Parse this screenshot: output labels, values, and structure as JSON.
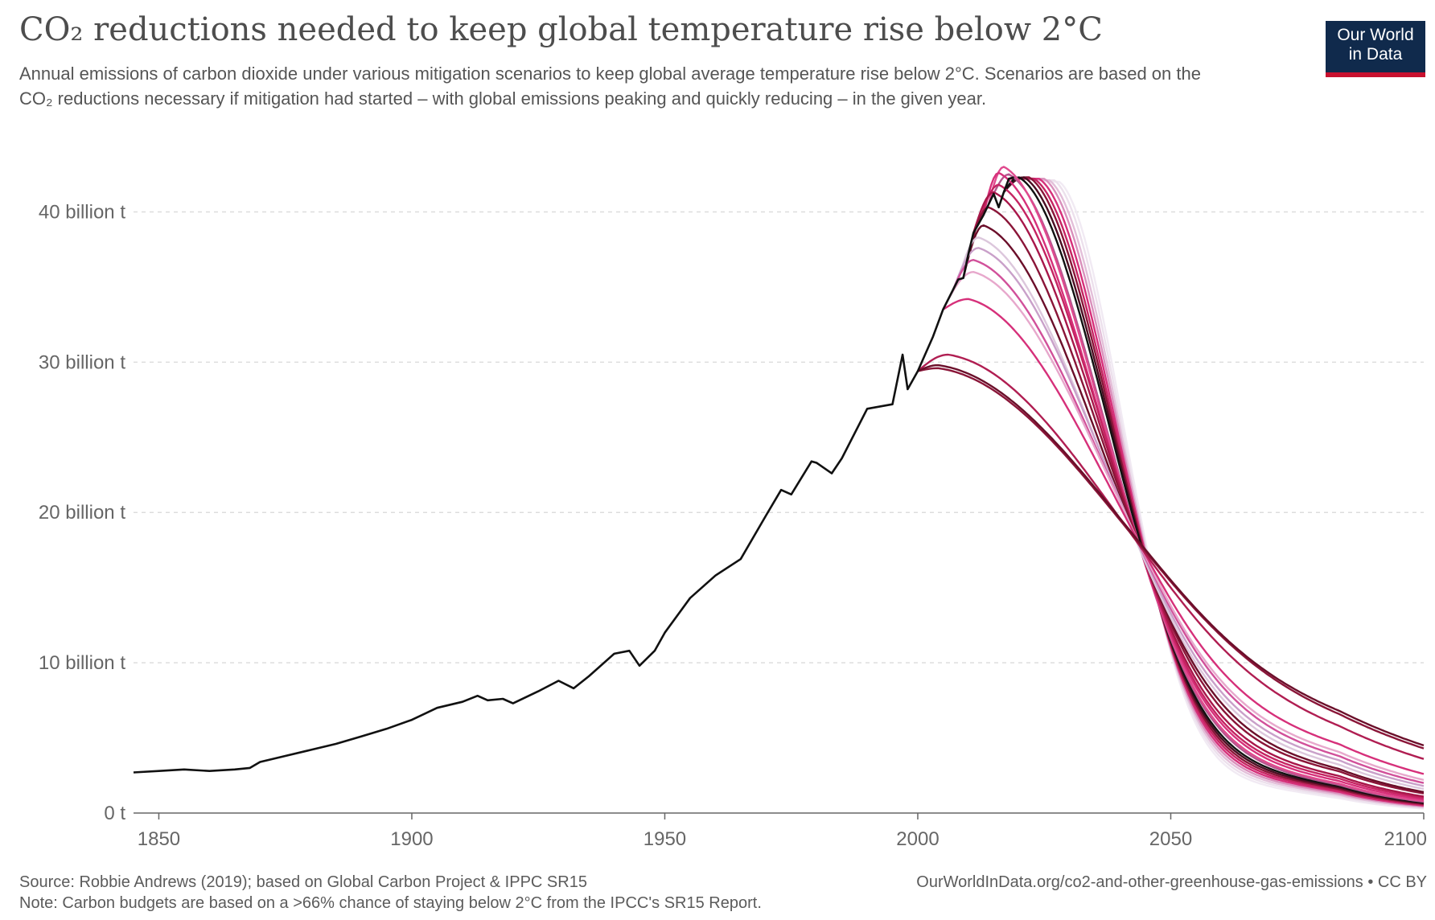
{
  "header": {
    "title": "CO₂ reductions needed to keep global temperature rise below 2°C",
    "subtitle": "Annual emissions of carbon dioxide under various mitigation scenarios to keep global average temperature rise below 2°C. Scenarios are based on the CO₂ reductions necessary if mitigation had started – with global emissions peaking and quickly reducing – in the given year.",
    "logo_line1": "Our World",
    "logo_line2": "in Data"
  },
  "footer": {
    "source": "Source: Robbie Andrews (2019); based on Global Carbon Project & IPPC SR15",
    "note": "Note: Carbon budgets are based on a >66% chance of staying below 2°C from the IPCC's SR15 Report.",
    "url": "OurWorldInData.org/co2-and-other-greenhouse-gas-emissions • CC BY"
  },
  "colors": {
    "historical": "#111111",
    "scenario_dark": "#6b0f2a",
    "scenario_mid": "#d6307a",
    "scenario_light": "#e0c8e0",
    "grid": "#dddddd",
    "axis": "#666666"
  },
  "chart_data": {
    "type": "line",
    "xlim": [
      1845,
      2100
    ],
    "ylim": [
      0,
      45
    ],
    "x_ticks": [
      1850,
      1900,
      1950,
      2000,
      2050,
      2100
    ],
    "x_tick_labels": [
      "1850",
      "1900",
      "1950",
      "2000",
      "2050",
      "2100"
    ],
    "y_ticks": [
      0,
      10,
      20,
      30,
      40
    ],
    "y_tick_labels": [
      "0 t",
      "10 billion t",
      "20 billion t",
      "30 billion t",
      "40 billion t"
    ],
    "grid": "horizontal dashed",
    "historical": {
      "x": [
        1845,
        1850,
        1855,
        1860,
        1865,
        1868,
        1870,
        1875,
        1880,
        1885,
        1890,
        1895,
        1900,
        1905,
        1910,
        1913,
        1915,
        1918,
        1920,
        1925,
        1929,
        1932,
        1935,
        1940,
        1943,
        1945,
        1948,
        1950,
        1955,
        1960,
        1965,
        1970,
        1973,
        1975,
        1979,
        1980,
        1983,
        1985,
        1990,
        1995,
        1997,
        1998,
        2000,
        2003,
        2005,
        2008,
        2009,
        2010,
        2011,
        2013,
        2015,
        2016,
        2017,
        2018,
        2019
      ],
      "y": [
        2.7,
        2.8,
        2.9,
        2.8,
        2.9,
        3.0,
        3.4,
        3.8,
        4.2,
        4.6,
        5.1,
        5.6,
        6.2,
        7.0,
        7.4,
        7.8,
        7.5,
        7.6,
        7.3,
        8.1,
        8.8,
        8.3,
        9.1,
        10.6,
        10.8,
        9.8,
        10.8,
        12.0,
        14.3,
        15.8,
        16.9,
        19.8,
        21.5,
        21.2,
        23.4,
        23.3,
        22.6,
        23.6,
        26.9,
        27.2,
        30.5,
        28.2,
        29.4,
        31.7,
        33.5,
        35.5,
        35.6,
        37.2,
        38.6,
        39.8,
        41.2,
        40.3,
        41.3,
        42.2,
        42.3
      ]
    },
    "scenarios": [
      {
        "start": 2000,
        "peak_year": 2004,
        "peak": 29.8,
        "e2050": 15.5,
        "e2100": 4.5,
        "color": "#6b0f2a"
      },
      {
        "start": 2000,
        "peak_year": 2004,
        "peak": 29.6,
        "e2050": 15.4,
        "e2100": 4.3,
        "color": "#8a1538"
      },
      {
        "start": 2000,
        "peak_year": 2006,
        "peak": 30.5,
        "e2050": 15.0,
        "e2100": 3.6,
        "color": "#b01e52"
      },
      {
        "start": 2005,
        "peak_year": 2010,
        "peak": 34.2,
        "e2050": 14.2,
        "e2100": 2.6,
        "color": "#d6307a"
      },
      {
        "start": 2005,
        "peak_year": 2011,
        "peak": 36.0,
        "e2050": 13.8,
        "e2100": 2.2,
        "color": "#e7a8cc"
      },
      {
        "start": 2007,
        "peak_year": 2011,
        "peak": 36.8,
        "e2050": 13.6,
        "e2100": 2.0,
        "color": "#d1509a"
      },
      {
        "start": 2007,
        "peak_year": 2012,
        "peak": 37.6,
        "e2050": 13.3,
        "e2100": 1.8,
        "color": "#c9a0c9"
      },
      {
        "start": 2008,
        "peak_year": 2012,
        "peak": 38.3,
        "e2050": 13.0,
        "e2100": 1.6,
        "color": "#dcc7dc"
      },
      {
        "start": 2009,
        "peak_year": 2013,
        "peak": 39.1,
        "e2050": 12.8,
        "e2100": 1.4,
        "color": "#6b0f2a"
      },
      {
        "start": 2010,
        "peak_year": 2014,
        "peak": 40.3,
        "e2050": 12.6,
        "e2100": 1.3,
        "color": "#8a1538"
      },
      {
        "start": 2011,
        "peak_year": 2015,
        "peak": 41.3,
        "e2050": 12.3,
        "e2100": 1.1,
        "color": "#a8174a"
      },
      {
        "start": 2012,
        "peak_year": 2016,
        "peak": 41.8,
        "e2050": 12.1,
        "e2100": 1.0,
        "color": "#c52462"
      },
      {
        "start": 2013,
        "peak_year": 2016,
        "peak": 42.6,
        "e2050": 11.9,
        "e2100": 0.9,
        "color": "#d6307a"
      },
      {
        "start": 2014,
        "peak_year": 2017,
        "peak": 43.0,
        "e2050": 11.7,
        "e2100": 0.8,
        "color": "#e04a8e"
      },
      {
        "start": 2015,
        "peak_year": 2018,
        "peak": 42.5,
        "e2050": 11.6,
        "e2100": 0.75,
        "color": "#b4568e"
      },
      {
        "start": 2017,
        "peak_year": 2020,
        "peak": 42.3,
        "e2050": 11.5,
        "e2100": 0.7,
        "color": "#111111"
      },
      {
        "start": 2017,
        "peak_year": 2021,
        "peak": 42.3,
        "e2050": 11.4,
        "e2100": 0.65,
        "color": "#4b0d22"
      },
      {
        "start": 2018,
        "peak_year": 2022,
        "peak": 42.3,
        "e2050": 11.3,
        "e2100": 0.6,
        "color": "#8a1538"
      },
      {
        "start": 2018,
        "peak_year": 2023,
        "peak": 42.2,
        "e2050": 11.2,
        "e2100": 0.55,
        "color": "#c52462"
      },
      {
        "start": 2019,
        "peak_year": 2024,
        "peak": 42.2,
        "e2050": 11.1,
        "e2100": 0.5,
        "color": "#d6307a"
      },
      {
        "start": 2019,
        "peak_year": 2025,
        "peak": 42.2,
        "e2050": 11.0,
        "e2100": 0.45,
        "color": "#d98fbb"
      },
      {
        "start": 2019,
        "peak_year": 2026,
        "peak": 42.1,
        "e2050": 10.9,
        "e2100": 0.4,
        "color": "#e3bfd9"
      },
      {
        "start": 2019,
        "peak_year": 2027,
        "peak": 42.1,
        "e2050": 10.8,
        "e2100": 0.35,
        "color": "#ece0ec"
      },
      {
        "start": 2019,
        "peak_year": 2028,
        "peak": 42.0,
        "e2050": 10.7,
        "e2100": 0.3,
        "color": "#f1eaf3"
      }
    ]
  }
}
